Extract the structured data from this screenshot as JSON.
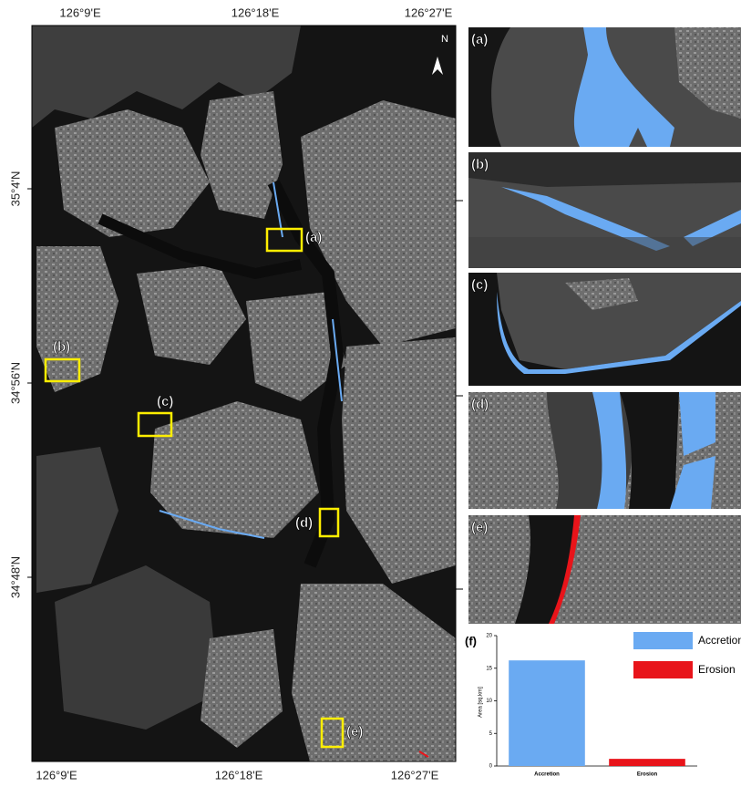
{
  "map": {
    "lon_labels": [
      "126°9'E",
      "126°18'E",
      "126°27'E"
    ],
    "lat_labels": [
      "35°4'N",
      "34°56'N",
      "34°48'N"
    ],
    "north": "N",
    "sites": [
      "(a)",
      "(b)",
      "(c)",
      "(d)",
      "(e)"
    ]
  },
  "chart_data": {
    "type": "bar",
    "panel": "(f)",
    "y_label": "Area [sq.km]",
    "categories": [
      "Accretion",
      "Erosion"
    ],
    "series": [
      {
        "name": "Accretion",
        "color": "#6aaaf2",
        "values": [
          16.2,
          null
        ]
      },
      {
        "name": "Erosion",
        "color": "#e8141a",
        "values": [
          null,
          1.1
        ]
      }
    ],
    "ylim": [
      0,
      20
    ],
    "yticks": [
      0,
      5,
      10,
      15,
      20
    ]
  }
}
